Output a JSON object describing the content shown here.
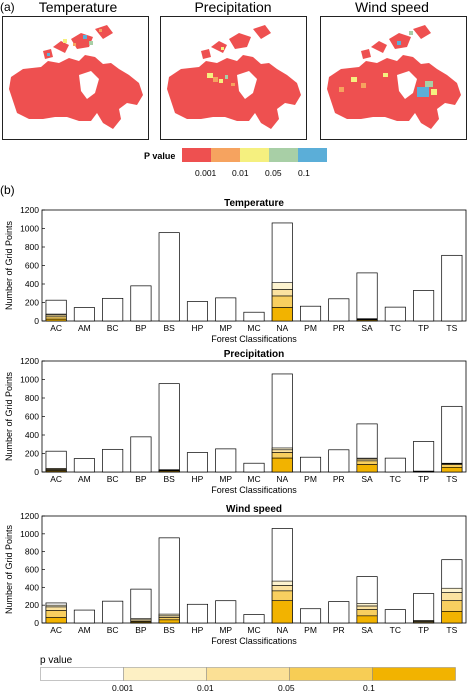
{
  "panel_a_label": "(a)",
  "panel_b_label": "(b)",
  "maps": [
    {
      "title": "Temperature"
    },
    {
      "title": "Precipitation"
    },
    {
      "title": "Wind speed"
    }
  ],
  "map_legend": {
    "title": "P value",
    "ticks": [
      "0.001",
      "0.01",
      "0.05",
      "0.1"
    ],
    "colors": [
      "#ee5050",
      "#f6a35f",
      "#f5f07f",
      "#a8cfa6",
      "#5baed8"
    ]
  },
  "bottom_legend": {
    "title": "p value",
    "ticks": [
      "0.001",
      "0.01",
      "0.05",
      "0.1"
    ],
    "colors": [
      "#ffffff",
      "#fdf0c4",
      "#fbe095",
      "#f7cd55",
      "#f2b300"
    ]
  },
  "colors": {
    "stack": [
      "#fdf3cf",
      "#fbe2a0",
      "#f8cf60",
      "#f2b300"
    ]
  },
  "chart_data": [
    {
      "type": "bar",
      "title": "Temperature",
      "xlabel": "Forest Classifications",
      "ylabel": "Number of Grid Points",
      "ylim": [
        0,
        1200
      ],
      "yticks": [
        0,
        200,
        400,
        600,
        800,
        1000,
        1200
      ],
      "categories": [
        "AC",
        "AM",
        "BC",
        "BP",
        "BS",
        "HP",
        "MP",
        "MC",
        "NA",
        "PM",
        "PR",
        "SA",
        "TC",
        "TP",
        "TS"
      ],
      "totals": [
        225,
        145,
        245,
        380,
        955,
        210,
        250,
        95,
        1060,
        160,
        240,
        520,
        150,
        330,
        710
      ],
      "stacks": [
        [
          10,
          20,
          25,
          20
        ],
        [
          0,
          0,
          0,
          0
        ],
        [
          0,
          0,
          0,
          0
        ],
        [
          0,
          0,
          0,
          0
        ],
        [
          0,
          0,
          0,
          0
        ],
        [
          0,
          0,
          0,
          0
        ],
        [
          0,
          0,
          0,
          0
        ],
        [
          0,
          0,
          0,
          0
        ],
        [
          75,
          70,
          125,
          145
        ],
        [
          0,
          0,
          0,
          0
        ],
        [
          0,
          0,
          0,
          0
        ],
        [
          5,
          5,
          5,
          10
        ],
        [
          0,
          0,
          0,
          0
        ],
        [
          0,
          0,
          0,
          0
        ],
        [
          0,
          0,
          0,
          0
        ]
      ]
    },
    {
      "type": "bar",
      "title": "Precipitation",
      "xlabel": "Forest Classifications",
      "ylabel": "Number of Grid Points",
      "ylim": [
        0,
        1200
      ],
      "yticks": [
        0,
        200,
        400,
        600,
        800,
        1000,
        1200
      ],
      "categories": [
        "AC",
        "AM",
        "BC",
        "BP",
        "BS",
        "HP",
        "MP",
        "MC",
        "NA",
        "PM",
        "PR",
        "SA",
        "TC",
        "TP",
        "TS"
      ],
      "totals": [
        225,
        145,
        245,
        380,
        955,
        210,
        250,
        95,
        1060,
        160,
        240,
        520,
        150,
        330,
        710
      ],
      "stacks": [
        [
          10,
          10,
          10,
          10
        ],
        [
          0,
          0,
          0,
          0
        ],
        [
          0,
          0,
          0,
          0
        ],
        [
          0,
          0,
          0,
          0
        ],
        [
          5,
          5,
          5,
          10
        ],
        [
          0,
          0,
          0,
          0
        ],
        [
          0,
          0,
          0,
          0
        ],
        [
          0,
          0,
          0,
          0
        ],
        [
          20,
          30,
          60,
          150
        ],
        [
          0,
          0,
          0,
          0
        ],
        [
          0,
          0,
          0,
          0
        ],
        [
          10,
          20,
          40,
          80
        ],
        [
          0,
          0,
          0,
          0
        ],
        [
          0,
          0,
          5,
          5
        ],
        [
          5,
          10,
          30,
          50
        ]
      ]
    },
    {
      "type": "bar",
      "title": "Wind speed",
      "xlabel": "Forest Classifications",
      "ylabel": "Number of Grid Points",
      "ylim": [
        0,
        1200
      ],
      "yticks": [
        0,
        200,
        400,
        600,
        800,
        1000,
        1200
      ],
      "categories": [
        "AC",
        "AM",
        "BC",
        "BP",
        "BS",
        "HP",
        "MP",
        "MC",
        "NA",
        "PM",
        "PR",
        "SA",
        "TC",
        "TP",
        "TS"
      ],
      "totals": [
        225,
        145,
        245,
        380,
        955,
        210,
        250,
        95,
        1060,
        160,
        240,
        520,
        150,
        330,
        710
      ],
      "stacks": [
        [
          20,
          40,
          80,
          60
        ],
        [
          0,
          0,
          0,
          0
        ],
        [
          0,
          0,
          0,
          0
        ],
        [
          15,
          15,
          10,
          10
        ],
        [
          20,
          20,
          25,
          35
        ],
        [
          0,
          0,
          0,
          0
        ],
        [
          0,
          0,
          0,
          0
        ],
        [
          0,
          0,
          0,
          0
        ],
        [
          50,
          60,
          110,
          250
        ],
        [
          0,
          0,
          0,
          0
        ],
        [
          0,
          0,
          0,
          0
        ],
        [
          30,
          40,
          70,
          80
        ],
        [
          0,
          0,
          0,
          0
        ],
        [
          10,
          10,
          10,
          0
        ],
        [
          50,
          90,
          120,
          130
        ]
      ]
    }
  ]
}
